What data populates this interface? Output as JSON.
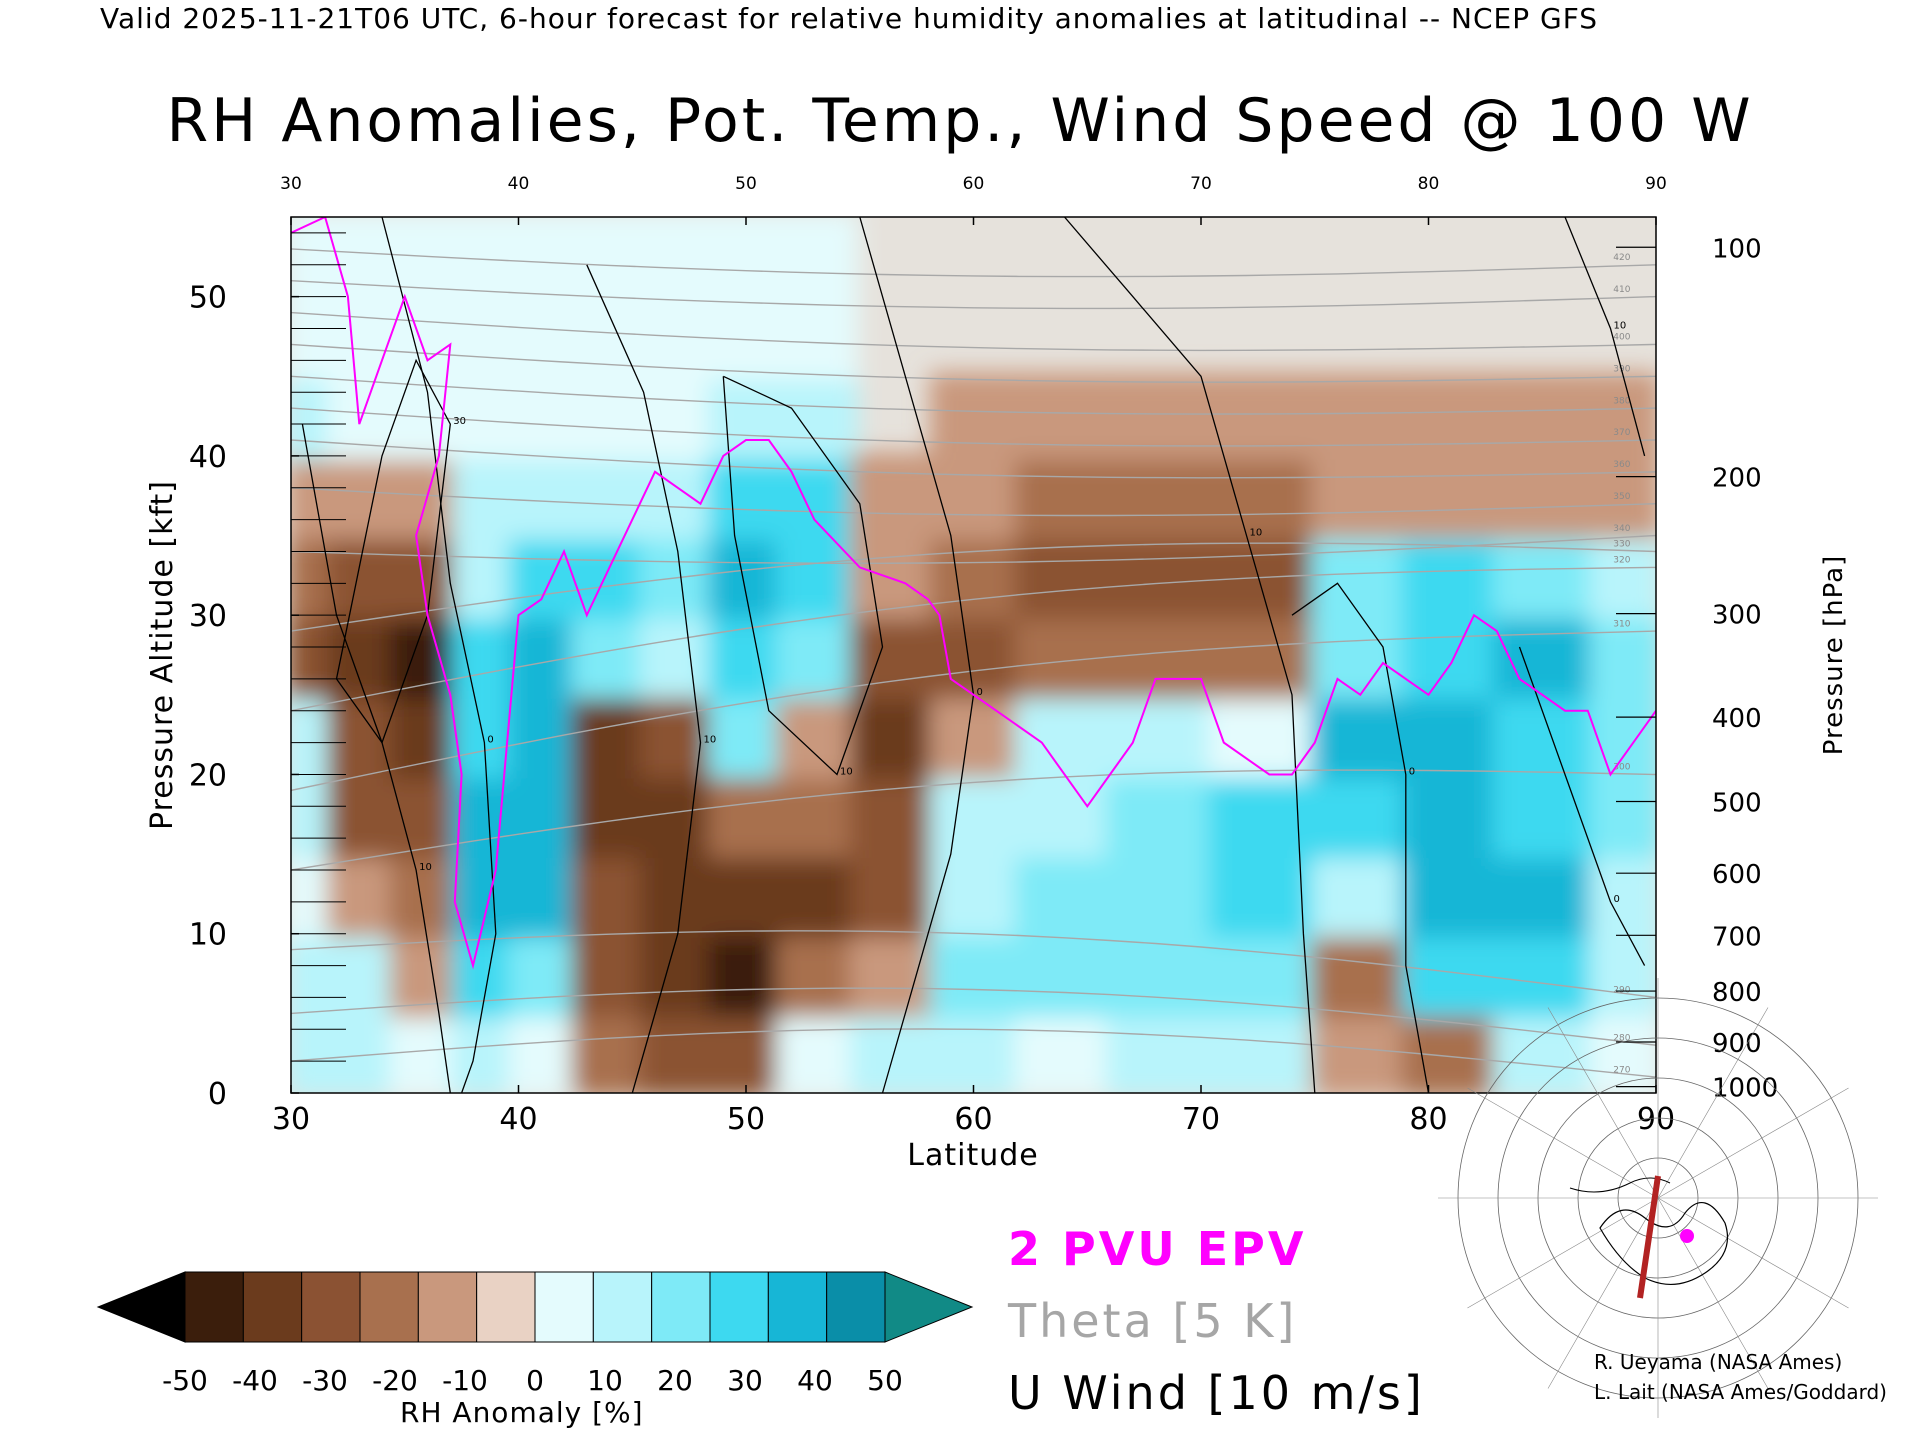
{
  "header": {
    "text": "Valid 2025-11-21T06 UTC, 6-hour forecast for relative humidity anomalies at latitudinal -- NCEP GFS"
  },
  "chart_data": {
    "type": "heatmap",
    "title": "RH Anomalies, Pot. Temp., Wind Speed @ 100 W",
    "xlabel": "Latitude",
    "ylabel": "Pressure Altitude [kft]",
    "y2label": "Pressure [hPa]",
    "xlim": [
      30,
      90
    ],
    "ylim": [
      0,
      55
    ],
    "x_ticks": [
      30,
      40,
      50,
      60,
      70,
      80,
      90
    ],
    "y_ticks": [
      0,
      10,
      20,
      30,
      40,
      50
    ],
    "pressure_ticks": [
      {
        "label": "100",
        "kft": 53.1
      },
      {
        "label": "200",
        "kft": 38.7
      },
      {
        "label": "300",
        "kft": 30.1
      },
      {
        "label": "400",
        "kft": 23.6
      },
      {
        "label": "500",
        "kft": 18.3
      },
      {
        "label": "600",
        "kft": 13.8
      },
      {
        "label": "700",
        "kft": 9.9
      },
      {
        "label": "800",
        "kft": 6.4
      },
      {
        "label": "900",
        "kft": 3.2
      },
      {
        "label": "1000",
        "kft": 0.4
      }
    ],
    "colorbar": {
      "label": "RH Anomaly [%]",
      "tick_labels": [
        "-50",
        "-40",
        "-30",
        "-20",
        "-10",
        "0",
        "10",
        "20",
        "30",
        "40",
        "50"
      ],
      "colors": [
        "#3b1e0c",
        "#6b3b1d",
        "#8b5233",
        "#a8704e",
        "#c9987d",
        "#e9d2c4",
        "#e4fbfd",
        "#b8f4fb",
        "#7eeaf7",
        "#3dd9f0",
        "#17b6d6",
        "#0a8ea8"
      ],
      "under_color": "#000000",
      "over_color": "#118a86"
    },
    "background_color": "#e6e2dc",
    "rh_columns": [
      {
        "lat": 30.5,
        "values": [
          10,
          10,
          5,
          10,
          10,
          -25,
          -20,
          -5,
          10,
          5,
          10
        ]
      },
      {
        "lat": 33,
        "values": [
          10,
          15,
          -10,
          -25,
          -30,
          -35,
          -30,
          -10,
          5,
          5,
          10
        ]
      },
      {
        "lat": 36,
        "values": [
          5,
          -10,
          -20,
          -30,
          -40,
          -45,
          -30,
          -10,
          5,
          5,
          5
        ]
      },
      {
        "lat": 38.5,
        "values": [
          10,
          30,
          40,
          40,
          35,
          30,
          15,
          10,
          5,
          5,
          5
        ]
      },
      {
        "lat": 41,
        "values": [
          5,
          25,
          40,
          40,
          40,
          45,
          35,
          15,
          5,
          5,
          5
        ]
      },
      {
        "lat": 44,
        "values": [
          -20,
          -25,
          -30,
          -40,
          -35,
          20,
          30,
          10,
          5,
          5,
          5
        ]
      },
      {
        "lat": 47,
        "values": [
          -30,
          -35,
          -40,
          -40,
          -30,
          10,
          20,
          15,
          5,
          5,
          5
        ]
      },
      {
        "lat": 50,
        "values": [
          -25,
          -45,
          -35,
          -15,
          20,
          30,
          40,
          35,
          10,
          5,
          5
        ]
      },
      {
        "lat": 53,
        "values": [
          5,
          -20,
          -35,
          -20,
          -10,
          20,
          35,
          30,
          10,
          5,
          5
        ]
      },
      {
        "lat": 56.5,
        "values": [
          10,
          -10,
          -30,
          -30,
          -40,
          -25,
          -10,
          -5,
          0,
          0,
          0
        ]
      },
      {
        "lat": 60,
        "values": [
          10,
          20,
          15,
          15,
          -10,
          -25,
          -20,
          -10,
          -5,
          0,
          0
        ]
      },
      {
        "lat": 64,
        "values": [
          5,
          20,
          25,
          15,
          10,
          -20,
          -25,
          -15,
          -5,
          0,
          0
        ]
      },
      {
        "lat": 68,
        "values": [
          10,
          20,
          25,
          25,
          15,
          -15,
          -25,
          -15,
          -5,
          0,
          0
        ]
      },
      {
        "lat": 73,
        "values": [
          10,
          20,
          30,
          35,
          5,
          -20,
          -30,
          -15,
          -5,
          0,
          0
        ]
      },
      {
        "lat": 77,
        "values": [
          -10,
          -20,
          15,
          35,
          40,
          25,
          20,
          -5,
          -5,
          0,
          0
        ]
      },
      {
        "lat": 81,
        "values": [
          -15,
          30,
          40,
          40,
          40,
          35,
          30,
          -5,
          -5,
          0,
          0
        ]
      },
      {
        "lat": 85,
        "values": [
          10,
          30,
          40,
          35,
          35,
          40,
          25,
          -10,
          -5,
          0,
          0
        ]
      },
      {
        "lat": 89.5,
        "values": [
          5,
          10,
          15,
          25,
          25,
          20,
          10,
          -10,
          -5,
          0,
          0
        ]
      }
    ],
    "rh_levels_kft": [
      0,
      5,
      10,
      15,
      20,
      25,
      30,
      35,
      40,
      45,
      55
    ],
    "theta_lines": [
      {
        "label": "270",
        "lat0": 30,
        "kft0": 2,
        "lat1": 90,
        "kft1": 1
      },
      {
        "label": "280",
        "lat0": 30,
        "kft0": 5,
        "lat1": 90,
        "kft1": 3
      },
      {
        "label": "290",
        "lat0": 30,
        "kft0": 9,
        "lat1": 90,
        "kft1": 6
      },
      {
        "label": "300",
        "lat0": 30,
        "kft0": 14,
        "lat1": 90,
        "kft1": 20
      },
      {
        "label": "310",
        "lat0": 30,
        "kft0": 19,
        "lat1": 90,
        "kft1": 29
      },
      {
        "label": "320",
        "lat0": 30,
        "kft0": 24,
        "lat1": 90,
        "kft1": 33
      },
      {
        "label": "330",
        "lat0": 30,
        "kft0": 29,
        "lat1": 90,
        "kft1": 34
      },
      {
        "label": "340",
        "lat0": 30,
        "kft0": 34,
        "lat1": 90,
        "kft1": 35
      },
      {
        "label": "350",
        "lat0": 30,
        "kft0": 38,
        "lat1": 90,
        "kft1": 37
      },
      {
        "label": "360",
        "lat0": 30,
        "kft0": 41,
        "lat1": 90,
        "kft1": 39
      },
      {
        "label": "370",
        "lat0": 30,
        "kft0": 43,
        "lat1": 90,
        "kft1": 41
      },
      {
        "label": "380",
        "lat0": 30,
        "kft0": 45,
        "lat1": 90,
        "kft1": 43
      },
      {
        "label": "390",
        "lat0": 30,
        "kft0": 47,
        "lat1": 90,
        "kft1": 45
      },
      {
        "label": "400",
        "lat0": 30,
        "kft0": 49,
        "lat1": 90,
        "kft1": 47
      },
      {
        "label": "410",
        "lat0": 30,
        "kft0": 51,
        "lat1": 90,
        "kft1": 50
      },
      {
        "label": "420",
        "lat0": 30,
        "kft0": 53,
        "lat1": 90,
        "kft1": 52
      }
    ],
    "wind_contours": [
      {
        "label": "0",
        "points": [
          [
            34,
            55
          ],
          [
            36,
            44
          ],
          [
            37,
            32
          ],
          [
            38.5,
            22
          ],
          [
            39,
            10
          ],
          [
            38,
            2
          ],
          [
            37.5,
            0
          ]
        ]
      },
      {
        "label": "10",
        "points": [
          [
            30.5,
            42
          ],
          [
            32,
            30
          ],
          [
            34,
            22
          ],
          [
            35.5,
            14
          ],
          [
            36.5,
            5
          ],
          [
            37,
            0
          ]
        ]
      },
      {
        "label": "30",
        "points": [
          [
            32,
            26
          ],
          [
            34,
            40
          ],
          [
            35.5,
            46
          ],
          [
            37,
            42
          ],
          [
            36,
            30
          ],
          [
            34,
            22
          ],
          [
            32,
            26
          ]
        ]
      },
      {
        "label": "10",
        "points": [
          [
            43,
            52
          ],
          [
            45.5,
            44
          ],
          [
            47,
            34
          ],
          [
            48,
            22
          ],
          [
            47,
            10
          ],
          [
            45,
            0
          ]
        ]
      },
      {
        "label": "10",
        "points": [
          [
            49,
            45
          ],
          [
            52,
            43
          ],
          [
            55,
            37
          ],
          [
            56,
            28
          ],
          [
            54,
            20
          ],
          [
            51,
            24
          ],
          [
            49.5,
            35
          ],
          [
            49,
            45
          ]
        ]
      },
      {
        "label": "0",
        "points": [
          [
            55,
            55
          ],
          [
            57,
            45
          ],
          [
            59,
            35
          ],
          [
            60,
            25
          ],
          [
            59,
            15
          ],
          [
            57,
            5
          ],
          [
            56,
            0
          ]
        ]
      },
      {
        "label": "10",
        "points": [
          [
            64,
            55
          ],
          [
            67,
            50
          ],
          [
            70,
            45
          ],
          [
            72,
            35
          ],
          [
            74,
            25
          ],
          [
            74.5,
            10
          ],
          [
            75,
            0
          ]
        ]
      },
      {
        "label": "0",
        "points": [
          [
            74,
            30
          ],
          [
            76,
            32
          ],
          [
            78,
            28
          ],
          [
            79,
            20
          ],
          [
            79,
            8
          ],
          [
            80,
            0
          ]
        ]
      },
      {
        "label": "10",
        "points": [
          [
            86,
            55
          ],
          [
            88,
            48
          ],
          [
            89.5,
            40
          ]
        ]
      },
      {
        "label": "0",
        "points": [
          [
            84,
            28
          ],
          [
            86,
            20
          ],
          [
            88,
            12
          ],
          [
            89.5,
            8
          ]
        ]
      }
    ],
    "epv_2pvu": [
      [
        30,
        54
      ],
      [
        31.5,
        55
      ],
      [
        32.5,
        50
      ],
      [
        33,
        42
      ],
      [
        34,
        46
      ],
      [
        35,
        50
      ],
      [
        36,
        46
      ],
      [
        37,
        47
      ],
      [
        36.5,
        40
      ],
      [
        35.5,
        35
      ],
      [
        36,
        30
      ],
      [
        37,
        25
      ],
      [
        37.5,
        20
      ],
      [
        37.2,
        12
      ],
      [
        38,
        8
      ],
      [
        39,
        14
      ],
      [
        39.5,
        22
      ],
      [
        40,
        30
      ],
      [
        41,
        31
      ],
      [
        42,
        34
      ],
      [
        43,
        30
      ],
      [
        44,
        33
      ],
      [
        45,
        36
      ],
      [
        46,
        39
      ],
      [
        47,
        38
      ],
      [
        48,
        37
      ],
      [
        49,
        40
      ],
      [
        50,
        41
      ],
      [
        51,
        41
      ],
      [
        52,
        39
      ],
      [
        53,
        36
      ],
      [
        55,
        33
      ],
      [
        57,
        32
      ],
      [
        58,
        31
      ],
      [
        58.5,
        30
      ],
      [
        59,
        26
      ],
      [
        61,
        24
      ],
      [
        63,
        22
      ],
      [
        65,
        18
      ],
      [
        66,
        20
      ],
      [
        67,
        22
      ],
      [
        68,
        26
      ],
      [
        70,
        26
      ],
      [
        71,
        22
      ],
      [
        73,
        20
      ],
      [
        74,
        20
      ],
      [
        75,
        22
      ],
      [
        76,
        26
      ],
      [
        77,
        25
      ],
      [
        78,
        27
      ],
      [
        79,
        26
      ],
      [
        80,
        25
      ],
      [
        81,
        27
      ],
      [
        82,
        30
      ],
      [
        83,
        29
      ],
      [
        84,
        26
      ],
      [
        85,
        25
      ],
      [
        86,
        24
      ],
      [
        87,
        24
      ],
      [
        88,
        20
      ],
      [
        89,
        22
      ],
      [
        90,
        24
      ]
    ],
    "inset_map": {
      "background": "#ffffff",
      "track_color": "#b22222",
      "marker_color": "#ff00ff"
    }
  },
  "legend": {
    "epv": "2 PVU EPV",
    "theta": "Theta [5 K]",
    "uwind": "U Wind [10 m/s]"
  },
  "credits": {
    "line1": "R. Ueyama (NASA Ames)",
    "line2": "L. Lait (NASA Ames/Goddard)"
  }
}
